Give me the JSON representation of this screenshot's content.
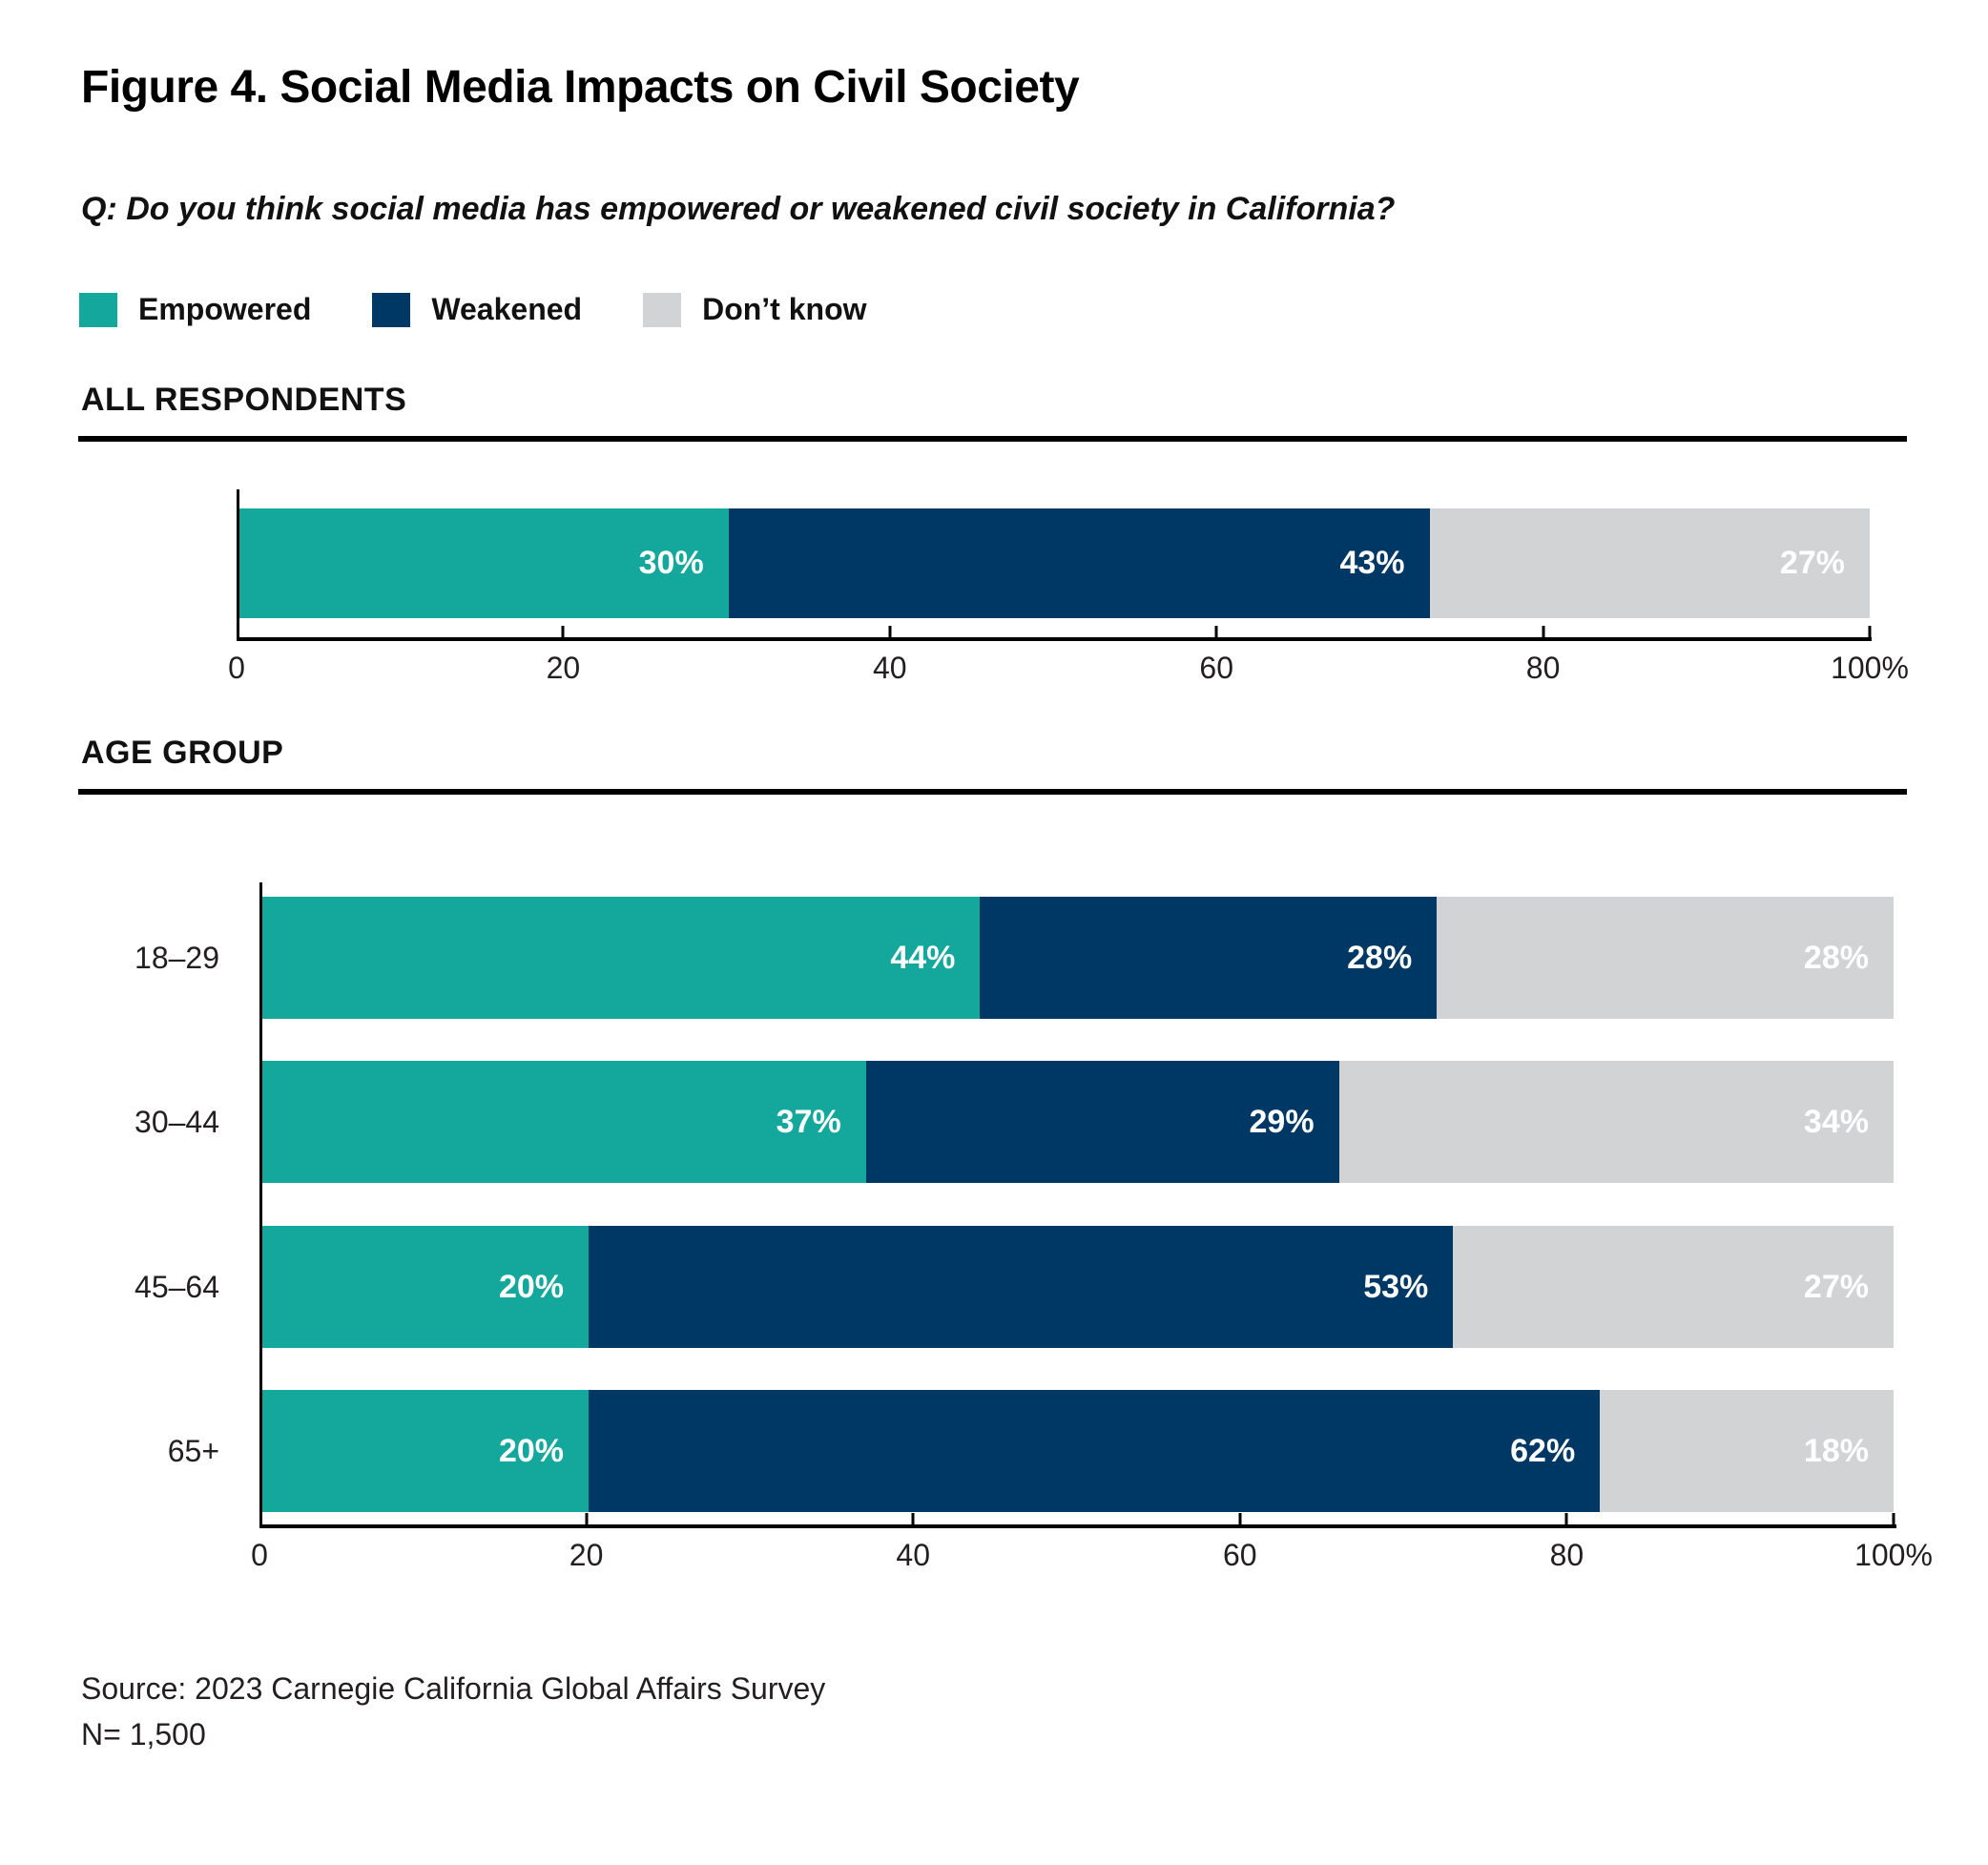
{
  "figure": {
    "title": "Figure 4. Social Media Impacts on Civil Society",
    "question": "Q: Do you think social media has empowered or weakened civil society in California?",
    "source_line1": "Source: 2023 Carnegie California Global Affairs Survey",
    "source_line2": "N= 1,500"
  },
  "colors": {
    "empowered": "#14A89C",
    "weakened": "#003865",
    "dont_know": "#D1D3D4",
    "axis": "#000000",
    "value_label": "#FFFFFF"
  },
  "legend": [
    {
      "label": "Empowered",
      "color": "#14A89C"
    },
    {
      "label": "Weakened",
      "color": "#003865"
    },
    {
      "label": "Don’t know",
      "color": "#D1D3D4"
    }
  ],
  "chart_data": [
    {
      "type": "bar",
      "orientation": "horizontal",
      "stacked": true,
      "section_label": "ALL RESPONDENTS",
      "categories": [
        ""
      ],
      "series": [
        {
          "name": "Empowered",
          "color": "#14A89C",
          "values": [
            30
          ]
        },
        {
          "name": "Weakened",
          "color": "#003865",
          "values": [
            43
          ]
        },
        {
          "name": "Don’t know",
          "color": "#D1D3D4",
          "values": [
            27
          ]
        }
      ],
      "xlim": [
        0,
        100
      ],
      "tick_labels": [
        "0",
        "20",
        "40",
        "60",
        "80",
        "100%"
      ],
      "value_label_format": "percent",
      "legend_position": "top"
    },
    {
      "type": "bar",
      "orientation": "horizontal",
      "stacked": true,
      "section_label": "AGE GROUP",
      "categories": [
        "18–29",
        "30–44",
        "45–64",
        "65+"
      ],
      "series": [
        {
          "name": "Empowered",
          "color": "#14A89C",
          "values": [
            44,
            37,
            20,
            20
          ]
        },
        {
          "name": "Weakened",
          "color": "#003865",
          "values": [
            28,
            29,
            53,
            62
          ]
        },
        {
          "name": "Don’t know",
          "color": "#D1D3D4",
          "values": [
            28,
            34,
            27,
            18
          ]
        }
      ],
      "xlim": [
        0,
        100
      ],
      "tick_labels": [
        "0",
        "20",
        "40",
        "60",
        "80",
        "100%"
      ],
      "value_label_format": "percent",
      "legend_position": "top"
    }
  ]
}
